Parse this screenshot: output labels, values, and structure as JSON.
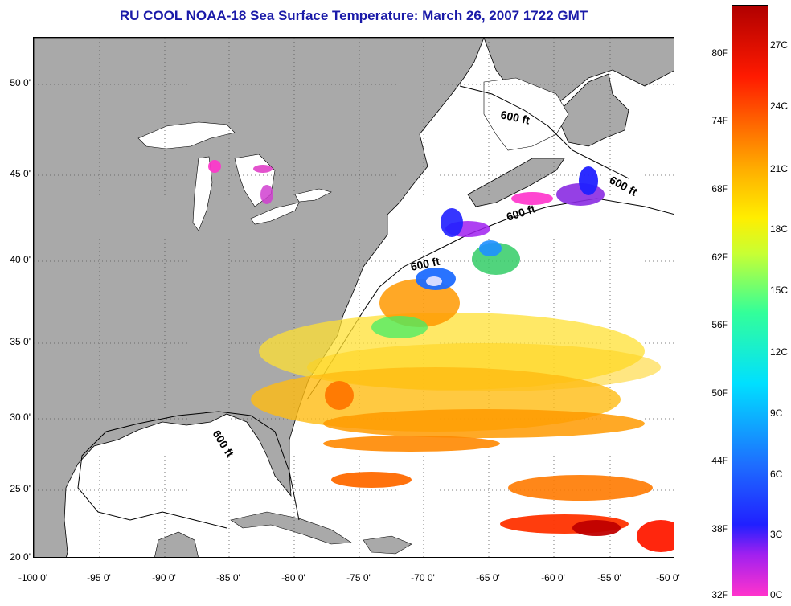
{
  "title": "RU COOL  NOAA-18  Sea Surface Temperature:  March 26, 2007 1722 GMT",
  "lat_labels": [
    "50 0'",
    "45 0'",
    "40 0'",
    "35 0'",
    "30 0'",
    "25 0'",
    "20 0'"
  ],
  "lon_labels": [
    "-100 0'",
    "-95 0'",
    "-90 0'",
    "-85 0'",
    "-80 0'",
    "-75 0'",
    "-70 0'",
    "-65 0'",
    "-60 0'",
    "-55 0'",
    "-50 0'"
  ],
  "contour_labels": [
    "600 ft",
    "600 ft",
    "600 ft",
    "600 ft",
    "600 ft"
  ],
  "colorbar": {
    "fahrenheit": [
      "80F",
      "74F",
      "68F",
      "62F",
      "56F",
      "50F",
      "44F",
      "38F",
      "32F"
    ],
    "celsius": [
      "27C",
      "24C",
      "21C",
      "18C",
      "15C",
      "12C",
      "9C",
      "6C",
      "3C",
      "0C"
    ]
  },
  "colors": {
    "land": "#a9a9a9",
    "ocean_nodata": "#ffffff",
    "title_text": "#1a1aa8"
  }
}
